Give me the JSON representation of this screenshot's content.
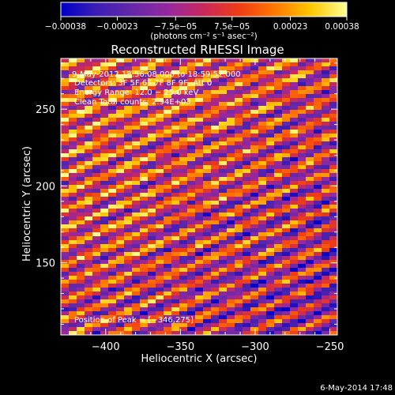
{
  "chart_data": {
    "type": "heatmap",
    "title": "Reconstructed RHESSI Image",
    "xlabel": "Heliocentric X (arcsec)",
    "ylabel": "Heliocentric Y (arcsec)",
    "xlim": [
      -430,
      -245
    ],
    "ylim": [
      103,
      283
    ],
    "x_ticks": [
      -400,
      -350,
      -300,
      -250
    ],
    "x_tick_labels": [
      "−400",
      "−350",
      "−300",
      "−250"
    ],
    "y_ticks": [
      150,
      200,
      250
    ],
    "y_tick_labels": [
      "150",
      "200",
      "250"
    ],
    "grid": false,
    "colorbar": {
      "range": [
        -0.00038,
        0.00038
      ],
      "tick_values": [
        -0.00038,
        -0.00023,
        -7.5e-05,
        7.5e-05,
        0.00023,
        0.00038
      ],
      "tick_labels": [
        "−0.00038",
        "−0.00023",
        "−7.5e−05",
        "7.5e−05",
        "0.00023",
        "0.00038"
      ],
      "units_label": "(photons cm⁻² s⁻¹ asec⁻²)",
      "colors": [
        "#0000c8",
        "#3c1eb4",
        "#6428aa",
        "#9628a0",
        "#c8285a",
        "#f03c14",
        "#ff7800",
        "#ffc800",
        "#ffff96"
      ]
    },
    "annotations": [
      "9‑May‑2012 18:56:08.000 to 18:59:52.000",
      "Detectors: 3F 5F 6F 7F 8F 9F, Att 0",
      "Energy Range: 12.0 − 25.0 keV",
      "Clean    Total counts: 2.94E+03"
    ],
    "peak_label": "Position of Peak = [−346,275]",
    "peak": {
      "x": -346,
      "y": 275
    }
  },
  "footer": {
    "timestamp": "6‑May‑2014 17:48"
  }
}
